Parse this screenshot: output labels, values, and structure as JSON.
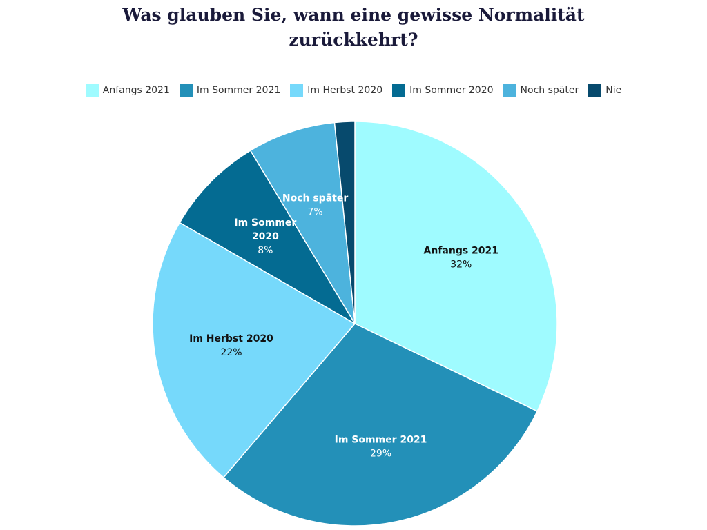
{
  "chart_data": {
    "type": "pie",
    "title_lines": [
      "Was glauben Sie, wann eine gewisse Normalität",
      "zurückkehrt?"
    ],
    "legend_position": "top",
    "series": [
      {
        "name": "Anfangs 2021",
        "value": 32,
        "label": "32%",
        "color": "#9ffbff",
        "text_color": "#111111",
        "name_lines": [
          "Anfangs 2021"
        ]
      },
      {
        "name": "Im Sommer 2021",
        "value": 29,
        "label": "29%",
        "color": "#2390b8",
        "text_color": "#ffffff",
        "name_lines": [
          "Im Sommer 2021"
        ]
      },
      {
        "name": "Im Herbst 2020",
        "value": 22,
        "label": "22%",
        "color": "#76d9fb",
        "text_color": "#111111",
        "name_lines": [
          "Im Herbst 2020"
        ]
      },
      {
        "name": "Im Sommer 2020",
        "value": 8,
        "label": "8%",
        "color": "#046b92",
        "text_color": "#ffffff",
        "name_lines": [
          "Im Sommer",
          "2020"
        ]
      },
      {
        "name": "Noch später",
        "value": 7,
        "label": "7%",
        "color": "#4db3dd",
        "text_color": "#ffffff",
        "name_lines": [
          "Noch später"
        ]
      },
      {
        "name": "Nie",
        "value": 1.6,
        "label": "",
        "color": "#074a6d",
        "text_color": "#ffffff",
        "name_lines": []
      }
    ]
  }
}
